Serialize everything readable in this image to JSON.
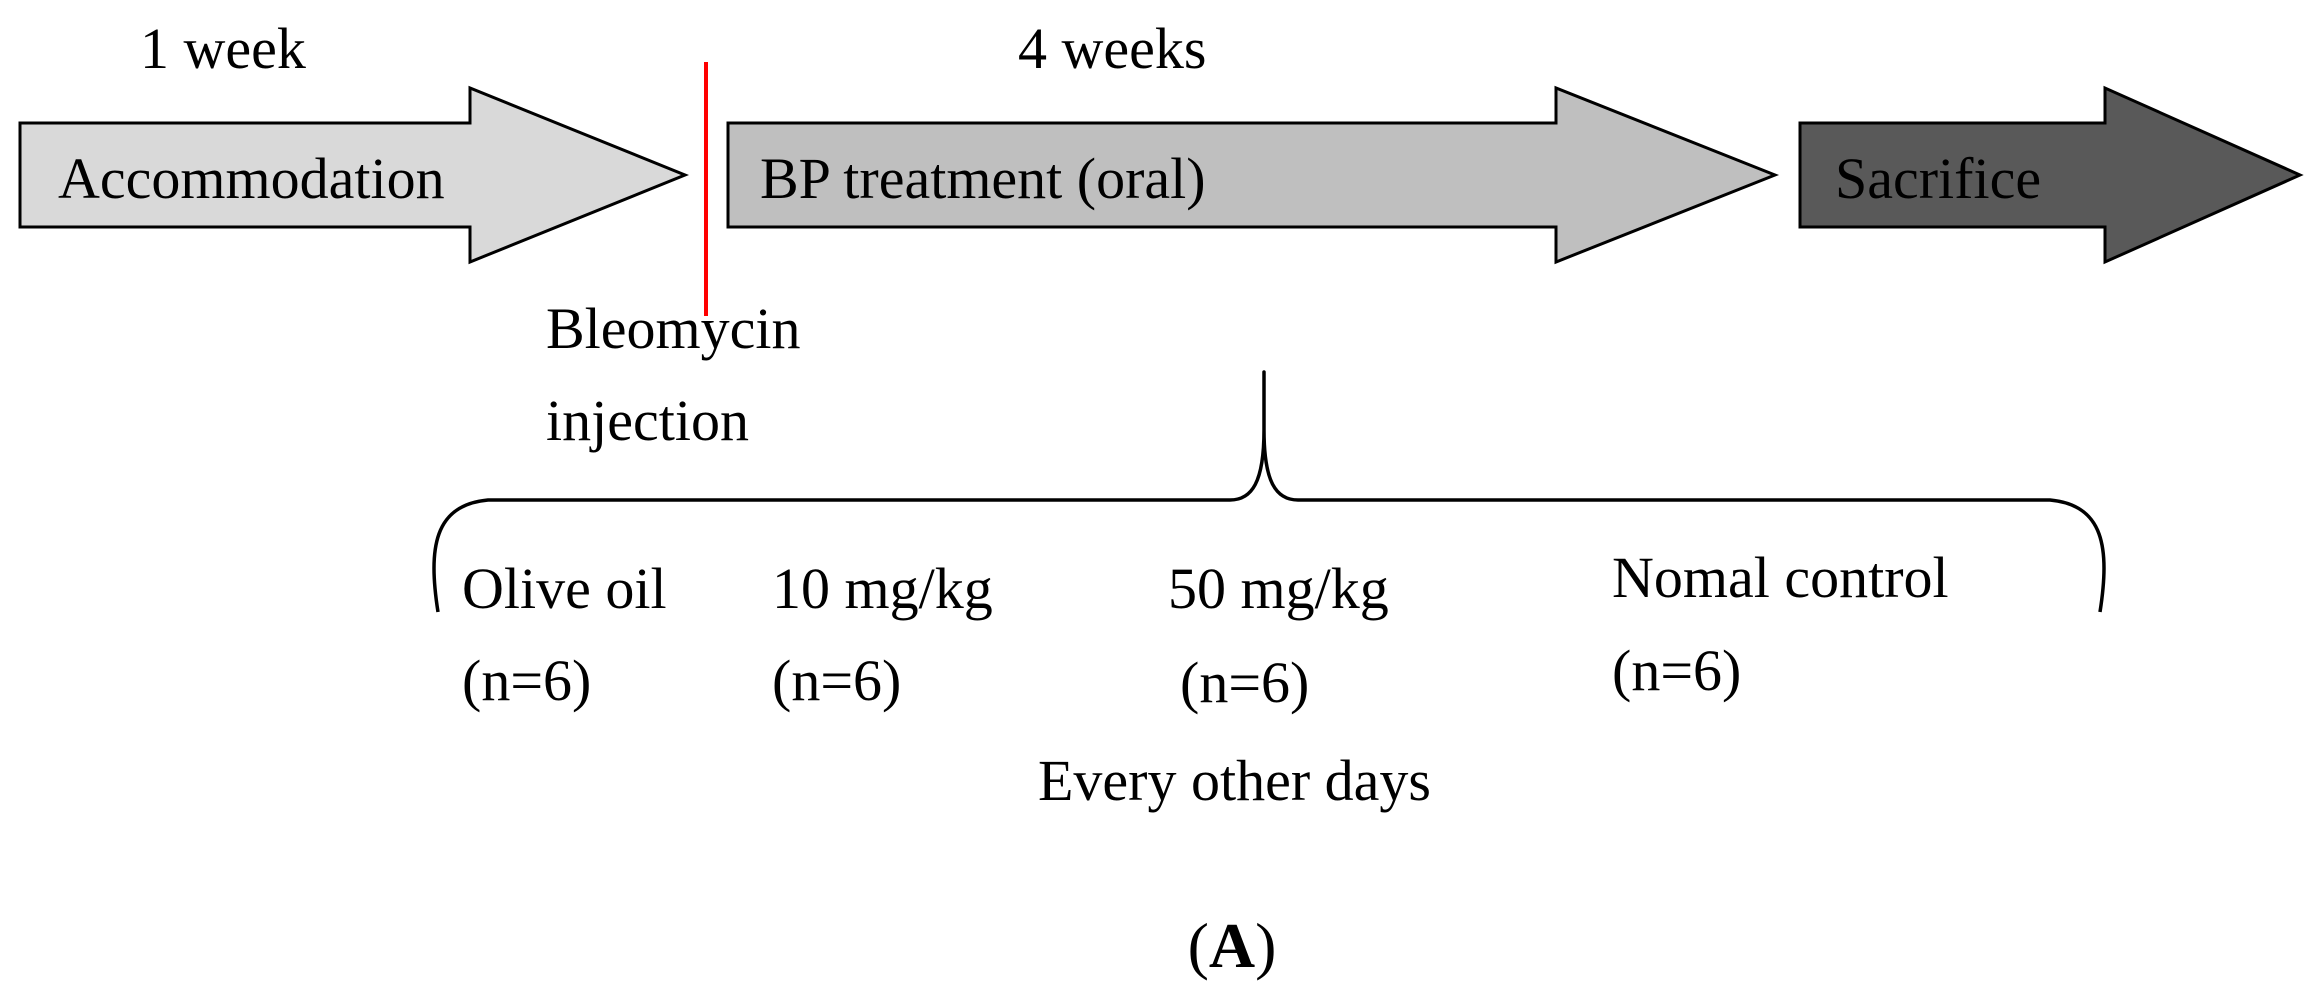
{
  "timeline": {
    "phase1": {
      "duration": "1 week",
      "label": "Accommodation"
    },
    "phase2": {
      "duration": "4 weeks",
      "label": "BP treatment (oral)"
    },
    "phase3": {
      "label": "Sacrifice"
    },
    "marker": {
      "line1": "Bleomycin",
      "line2": "injection"
    }
  },
  "groups": [
    {
      "name": "Olive oil",
      "n": "(n=6)"
    },
    {
      "name": "10 mg/kg",
      "n": "(n=6)"
    },
    {
      "name": "50 mg/kg",
      "n": "(n=6)"
    },
    {
      "name": "Nomal control",
      "n": "(n=6)"
    }
  ],
  "schedule": "Every other days",
  "panel": {
    "open": "(",
    "letter": "A",
    "close": ")"
  },
  "colors": {
    "arrow_light": "#d9d9d9",
    "arrow_mid": "#bfbfbf",
    "arrow_dark": "#595959",
    "marker": "#ff0000",
    "stroke": "#000000"
  }
}
